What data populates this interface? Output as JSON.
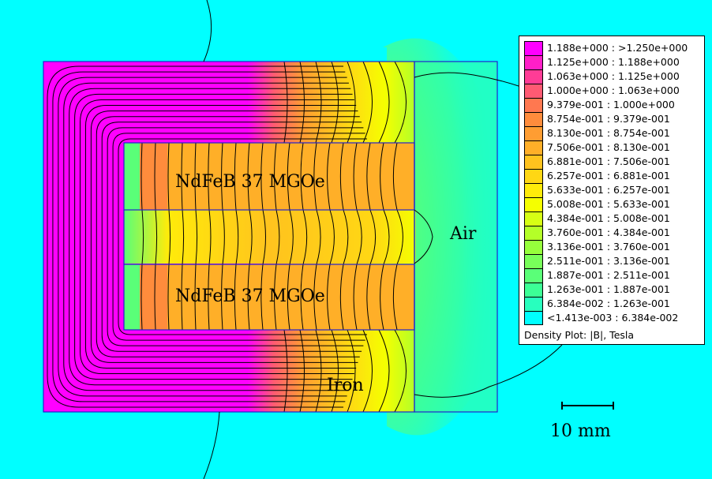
{
  "colors": {
    "background": "#00ffff",
    "outline": "#2222cc",
    "fluxline": "#000000"
  },
  "labels": {
    "magnet_top": "NdFeB 37 MGOe",
    "magnet_bottom": "NdFeB 37 MGOe",
    "air": "Air",
    "iron": "Iron"
  },
  "scale_bar": {
    "label": "10 mm"
  },
  "legend": {
    "caption": "Density Plot: |B|, Tesla",
    "entries": [
      {
        "range": "1.188e+000 : >1.250e+000",
        "color": "#ff00ff"
      },
      {
        "range": "1.125e+000 : 1.188e+000",
        "color": "#ff1fc8"
      },
      {
        "range": "1.063e+000 : 1.125e+000",
        "color": "#ff3c96"
      },
      {
        "range": "1.000e+000 : 1.063e+000",
        "color": "#ff5a73"
      },
      {
        "range": "9.379e-001 : 1.000e+000",
        "color": "#ff7850"
      },
      {
        "range": "8.754e-001 : 9.379e-001",
        "color": "#ff8c3c"
      },
      {
        "range": "8.130e-001 : 8.754e-001",
        "color": "#ff9d32"
      },
      {
        "range": "7.506e-001 : 8.130e-001",
        "color": "#ffaf28"
      },
      {
        "range": "6.881e-001 : 7.506e-001",
        "color": "#ffc31e"
      },
      {
        "range": "6.257e-001 : 6.881e-001",
        "color": "#ffd714"
      },
      {
        "range": "5.633e-001 : 6.257e-001",
        "color": "#ffeb0a"
      },
      {
        "range": "5.008e-001 : 5.633e-001",
        "color": "#f5ff00"
      },
      {
        "range": "4.384e-001 : 5.008e-001",
        "color": "#d7ff14"
      },
      {
        "range": "3.760e-001 : 4.384e-001",
        "color": "#b4ff28"
      },
      {
        "range": "3.136e-001 : 3.760e-001",
        "color": "#96ff3c"
      },
      {
        "range": "2.511e-001 : 3.136e-001",
        "color": "#78ff5a"
      },
      {
        "range": "1.887e-001 : 2.511e-001",
        "color": "#5aff78"
      },
      {
        "range": "1.263e-001 : 1.887e-001",
        "color": "#3cff96"
      },
      {
        "range": "6.384e-002 : 1.263e-001",
        "color": "#28ffbe"
      },
      {
        "range": "<1.413e-003 : 6.384e-002",
        "color": "#00ffff"
      }
    ]
  }
}
